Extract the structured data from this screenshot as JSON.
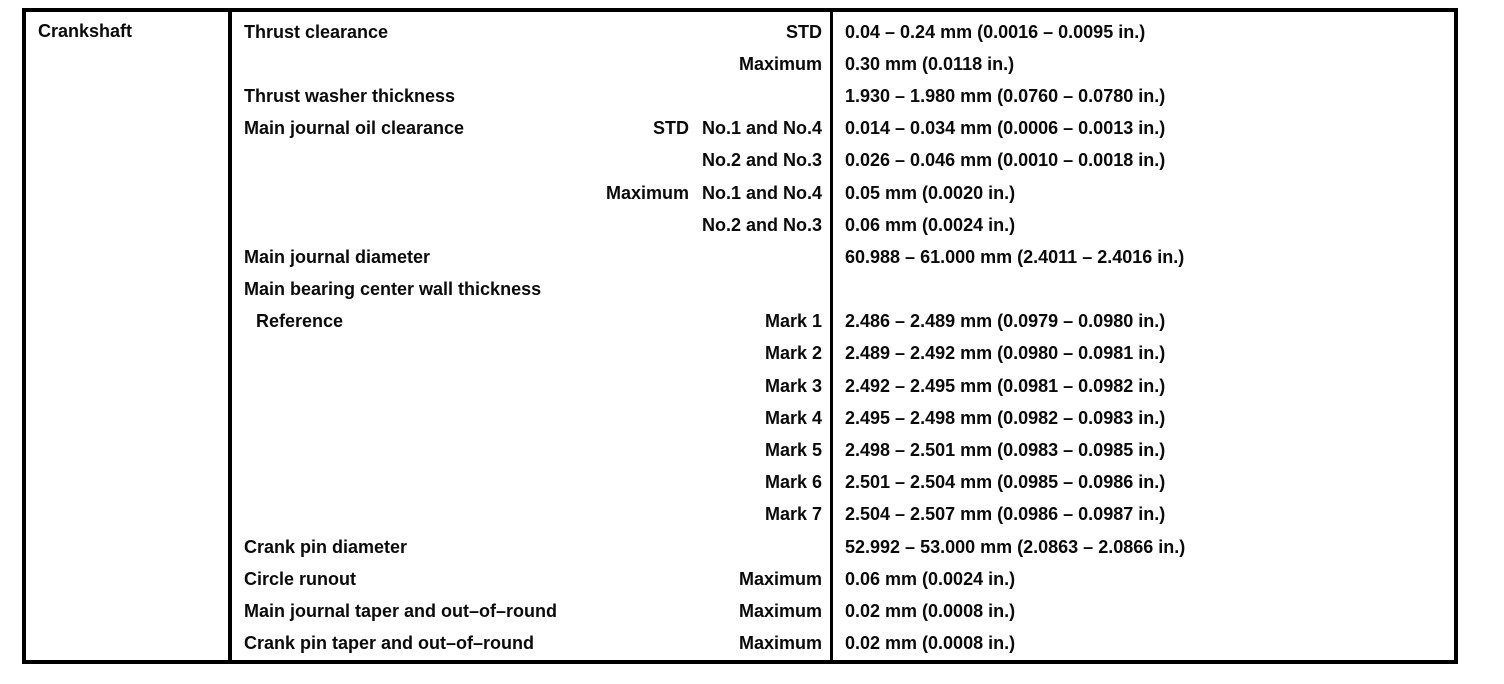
{
  "colors": {
    "background": "#ffffff",
    "border": "#000000",
    "text": "#0a0a0a"
  },
  "table": {
    "component": "Crankshaft",
    "columns": [
      "component",
      "specification",
      "value"
    ],
    "rows": [
      {
        "label": "Thrust clearance",
        "q1": "",
        "q2": "STD",
        "value": "0.04 – 0.24 mm (0.0016 – 0.0095 in.)",
        "indent": false
      },
      {
        "label": "",
        "q1": "",
        "q2": "Maximum",
        "value": "0.30 mm (0.0118 in.)",
        "indent": false
      },
      {
        "label": "Thrust washer thickness",
        "q1": "",
        "q2": "",
        "value": "1.930 – 1.980 mm (0.0760 – 0.0780 in.)",
        "indent": false
      },
      {
        "label": "Main journal oil clearance",
        "q1": "STD",
        "q2": "No.1 and No.4",
        "value": "0.014 – 0.034 mm (0.0006 – 0.0013 in.)",
        "indent": false
      },
      {
        "label": "",
        "q1": "",
        "q2": "No.2 and No.3",
        "value": "0.026 – 0.046 mm (0.0010 – 0.0018 in.)",
        "indent": false
      },
      {
        "label": "",
        "q1": "Maximum",
        "q2": "No.1 and No.4",
        "value": "0.05 mm (0.0020 in.)",
        "indent": false
      },
      {
        "label": "",
        "q1": "",
        "q2": "No.2 and No.3",
        "value": "0.06 mm (0.0024 in.)",
        "indent": false
      },
      {
        "label": "Main journal diameter",
        "q1": "",
        "q2": "",
        "value": "60.988 – 61.000 mm (2.4011 – 2.4016 in.)",
        "indent": false
      },
      {
        "label": "Main bearing center wall thickness",
        "q1": "",
        "q2": "",
        "value": "",
        "indent": false
      },
      {
        "label": "Reference",
        "q1": "",
        "q2": "Mark 1",
        "value": "2.486 – 2.489 mm (0.0979 – 0.0980 in.)",
        "indent": true
      },
      {
        "label": "",
        "q1": "",
        "q2": "Mark 2",
        "value": "2.489 – 2.492 mm (0.0980 – 0.0981 in.)",
        "indent": false
      },
      {
        "label": "",
        "q1": "",
        "q2": "Mark 3",
        "value": "2.492 – 2.495 mm (0.0981 – 0.0982 in.)",
        "indent": false
      },
      {
        "label": "",
        "q1": "",
        "q2": "Mark 4",
        "value": "2.495 – 2.498 mm (0.0982 – 0.0983 in.)",
        "indent": false
      },
      {
        "label": "",
        "q1": "",
        "q2": "Mark 5",
        "value": "2.498 – 2.501 mm (0.0983 – 0.0985 in.)",
        "indent": false
      },
      {
        "label": "",
        "q1": "",
        "q2": "Mark 6",
        "value": "2.501 – 2.504 mm (0.0985 – 0.0986 in.)",
        "indent": false
      },
      {
        "label": "",
        "q1": "",
        "q2": "Mark 7",
        "value": "2.504 – 2.507 mm (0.0986 – 0.0987 in.)",
        "indent": false
      },
      {
        "label": "Crank pin diameter",
        "q1": "",
        "q2": "",
        "value": "52.992 – 53.000 mm (2.0863 – 2.0866 in.)",
        "indent": false
      },
      {
        "label": "Circle runout",
        "q1": "",
        "q2": "Maximum",
        "value": "0.06 mm (0.0024 in.)",
        "indent": false
      },
      {
        "label": "Main journal taper and out–of–round",
        "q1": "",
        "q2": "Maximum",
        "value": "0.02 mm (0.0008 in.)",
        "indent": false
      },
      {
        "label": "Crank pin taper and out–of–round",
        "q1": "",
        "q2": "Maximum",
        "value": "0.02 mm (0.0008 in.)",
        "indent": false
      }
    ]
  }
}
